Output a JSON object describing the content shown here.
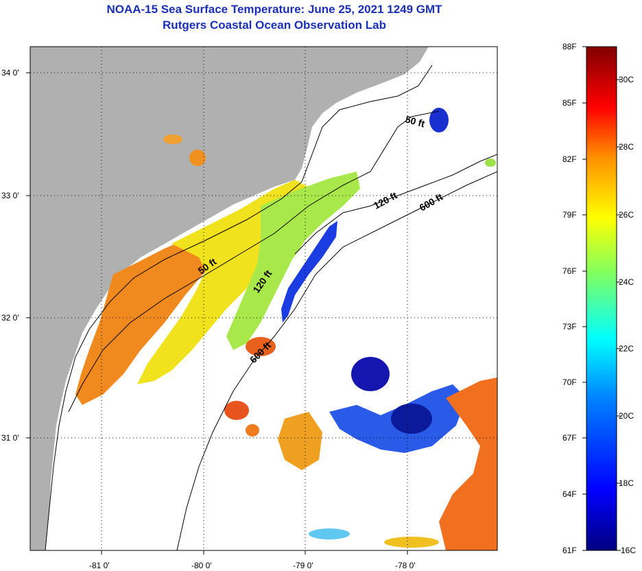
{
  "title": {
    "line1": "NOAA-15 Sea Surface Temperature:  June 25, 2021 1249 GMT",
    "line2": "Rutgers Coastal Ocean Observation Lab"
  },
  "axes": {
    "lat_labels": [
      "34 0'",
      "33 0'",
      "32 0'",
      "31 0'"
    ],
    "lon_labels": [
      "-81 0'",
      "-80 0'",
      "-79 0'",
      "-78 0'"
    ]
  },
  "contour_labels": {
    "fifty_a": "50 ft",
    "fifty_b": "50 ft",
    "onetwenty_a": "120 ft",
    "onetwenty_b": "120 ft",
    "sixhundred_a": "600 ft",
    "sixhundred_b": "600 ft"
  },
  "colorbar": {
    "fahrenheit": [
      "88F",
      "85F",
      "82F",
      "79F",
      "76F",
      "73F",
      "70F",
      "67F",
      "64F",
      "61F"
    ],
    "celsius": [
      "30C",
      "28C",
      "26C",
      "24C",
      "22C",
      "20C",
      "18C",
      "16C"
    ]
  },
  "colors": {
    "land": "#b0b0b0",
    "title": "#1a2fb5"
  }
}
